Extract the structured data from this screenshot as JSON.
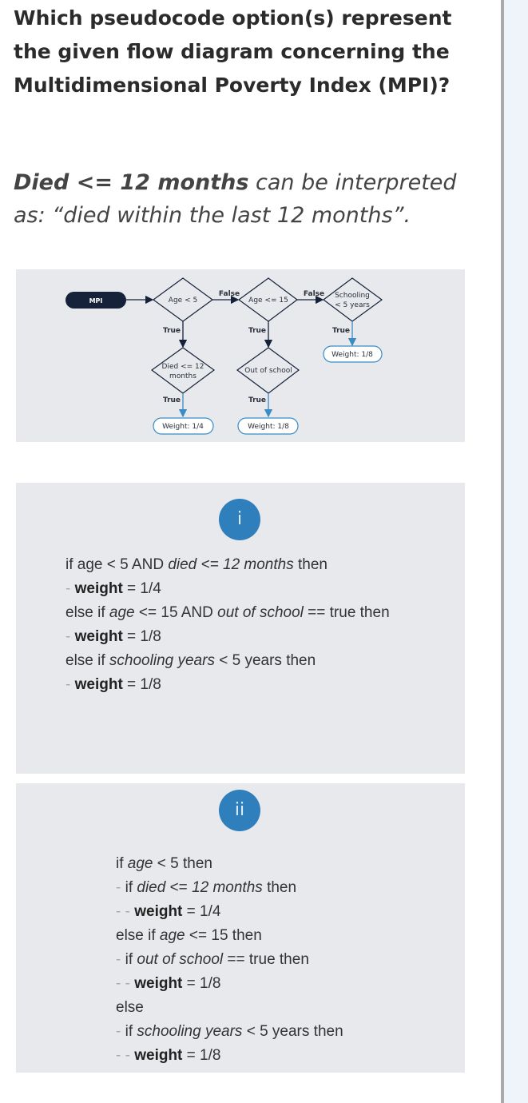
{
  "question": "Which pseudocode option(s) represent the given flow diagram concerning the Multidimensional Poverty Index (MPI)?",
  "note": {
    "emph": "Died <= 12 months",
    "rest": " can be interpreted as: “died within the last 12 months”."
  },
  "diagram": {
    "start": "MPI",
    "age5": "Age < 5",
    "age15": "Age <= 15",
    "schooling_1": "Schooling",
    "schooling_2": "< 5 years",
    "died_1": "Died <= 12",
    "died_2": "months",
    "out_of_school": "Out of school",
    "false_label": "False",
    "true_label": "True",
    "weight_quarter": "Weight: 1/4",
    "weight_eighth": "Weight: 1/8",
    "colors": {
      "dark": "#15223a",
      "blue": "#3a8cc4"
    }
  },
  "options": [
    {
      "badge": "i",
      "lines": [
        [
          [
            "if age < 5 AND ",
            ""
          ],
          [
            "died <= 12 months",
            "i"
          ],
          [
            " then",
            ""
          ]
        ],
        [
          [
            "- ",
            "d"
          ],
          [
            "weight",
            "b"
          ],
          [
            " = 1/4",
            ""
          ]
        ],
        [
          [
            "else if ",
            ""
          ],
          [
            "age",
            "i"
          ],
          [
            " <= 15 AND ",
            ""
          ],
          [
            "out of school",
            "i"
          ],
          [
            " == true then",
            ""
          ]
        ],
        [
          [
            "- ",
            "d"
          ],
          [
            "weight",
            "b"
          ],
          [
            " = 1/8",
            ""
          ]
        ],
        [
          [
            "else if ",
            ""
          ],
          [
            "schooling years",
            "i"
          ],
          [
            " < 5 years then",
            ""
          ]
        ],
        [
          [
            "- ",
            "d"
          ],
          [
            "weight",
            "b"
          ],
          [
            " = 1/8",
            ""
          ]
        ]
      ]
    },
    {
      "badge": "ii",
      "lines": [
        [
          [
            "if ",
            ""
          ],
          [
            "age",
            "i"
          ],
          [
            " < 5 then",
            ""
          ]
        ],
        [
          [
            "- ",
            "d"
          ],
          [
            "if ",
            ""
          ],
          [
            "died",
            "i"
          ],
          [
            " <= ",
            ""
          ],
          [
            "12 months",
            "i"
          ],
          [
            " then",
            ""
          ]
        ],
        [
          [
            "- - ",
            "d"
          ],
          [
            "weight",
            "b"
          ],
          [
            " = 1/4",
            ""
          ]
        ],
        [
          [
            "else if ",
            ""
          ],
          [
            "age",
            "i"
          ],
          [
            " <= 15 then",
            ""
          ]
        ],
        [
          [
            "- ",
            "d"
          ],
          [
            "if ",
            ""
          ],
          [
            "out of school",
            "i"
          ],
          [
            " == true then",
            ""
          ]
        ],
        [
          [
            "- - ",
            "d"
          ],
          [
            "weight",
            "b"
          ],
          [
            " = 1/8",
            ""
          ]
        ],
        [
          [
            "else",
            ""
          ]
        ],
        [
          [
            "- ",
            "d"
          ],
          [
            "if ",
            ""
          ],
          [
            "schooling years",
            "i"
          ],
          [
            " < 5 years then",
            ""
          ]
        ],
        [
          [
            "- - ",
            "d"
          ],
          [
            "weight",
            "b"
          ],
          [
            " = 1/8",
            ""
          ]
        ]
      ]
    }
  ]
}
